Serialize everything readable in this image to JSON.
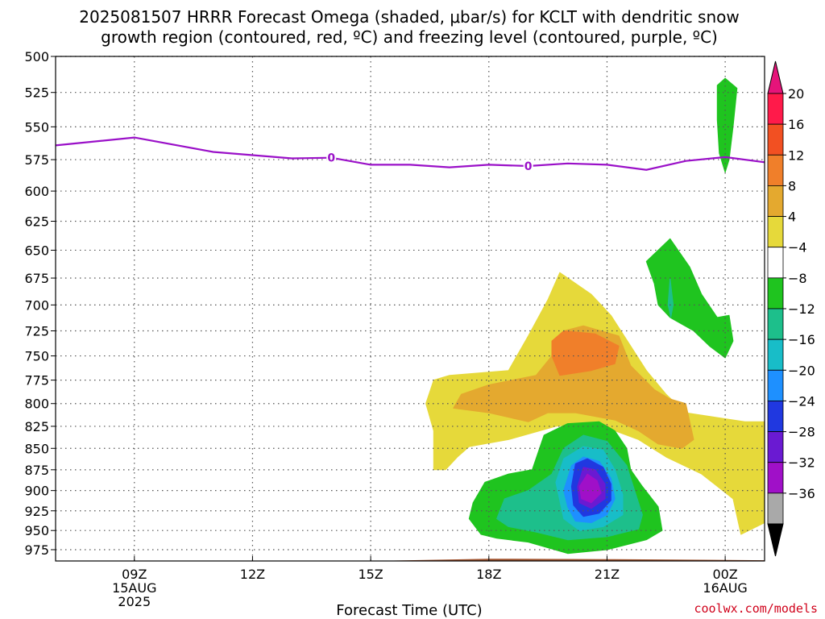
{
  "chart_data": {
    "type": "contour",
    "title_line1": "2025081507 HRRR Forecast Omega (shaded, μbar/s) for KCLT with dendritic snow",
    "title_line2": "growth region (contoured, red, ºC) and freezing level (contoured, purple, ºC)",
    "xlabel": "Forecast Time (UTC)",
    "credit": "coolwx.com/models",
    "y_axis": {
      "ticks": [
        500,
        525,
        550,
        575,
        600,
        625,
        650,
        675,
        700,
        725,
        750,
        775,
        800,
        825,
        850,
        875,
        900,
        925,
        950,
        975
      ],
      "range": [
        500,
        990
      ],
      "scale": "log-pressure"
    },
    "x_axis": {
      "range_hours": [
        0,
        18
      ],
      "ticks": [
        {
          "hour": 2,
          "line1": "09Z",
          "line2": "15AUG",
          "line3": "2025"
        },
        {
          "hour": 5,
          "line1": "12Z",
          "line2": "",
          "line3": ""
        },
        {
          "hour": 8,
          "line1": "15Z",
          "line2": "",
          "line3": ""
        },
        {
          "hour": 11,
          "line1": "18Z",
          "line2": "",
          "line3": ""
        },
        {
          "hour": 14,
          "line1": "21Z",
          "line2": "",
          "line3": ""
        },
        {
          "hour": 17,
          "line1": "00Z",
          "line2": "16AUG",
          "line3": ""
        }
      ]
    },
    "colorbar": {
      "labels": [
        "20",
        "16",
        "12",
        "8",
        "4",
        "−4",
        "−8",
        "−12",
        "−16",
        "−20",
        "−24",
        "−28",
        "−32",
        "−36"
      ],
      "colors": [
        "#ff1a4a",
        "#f25022",
        "#f07f2a",
        "#e4a92f",
        "#e6d93a",
        "#ffffff",
        "#1fc41f",
        "#1dbf8b",
        "#18bdc8",
        "#1e90ff",
        "#2038e0",
        "#6a1ad2",
        "#a010c8",
        "#a9a9a9"
      ],
      "top_arrow_color": "#e6147a",
      "bottom_arrow_color": "#000000"
    },
    "freezing_level": {
      "color": "#9a10c8",
      "label": "0",
      "label_hours": [
        7.0,
        12.0
      ],
      "points": [
        [
          0,
          564
        ],
        [
          2,
          558
        ],
        [
          4,
          569
        ],
        [
          6,
          574
        ],
        [
          7,
          573.5
        ],
        [
          8,
          579
        ],
        [
          9,
          579
        ],
        [
          10,
          581
        ],
        [
          11,
          579
        ],
        [
          12,
          580
        ],
        [
          13,
          578
        ],
        [
          14,
          579
        ],
        [
          15,
          583
        ],
        [
          16,
          576
        ],
        [
          17,
          573
        ],
        [
          18,
          577
        ]
      ]
    },
    "omega_regions": [
      {
        "value": 4,
        "color": "#e6d93a",
        "points": [
          [
            9.6,
            875
          ],
          [
            9.6,
            830
          ],
          [
            9.4,
            800
          ],
          [
            9.6,
            775
          ],
          [
            10,
            770
          ],
          [
            11.5,
            765
          ],
          [
            12,
            730
          ],
          [
            12.5,
            695
          ],
          [
            12.8,
            670
          ],
          [
            13.6,
            690
          ],
          [
            14.1,
            710
          ],
          [
            14.6,
            740
          ],
          [
            15,
            765
          ],
          [
            15.5,
            790
          ],
          [
            16,
            810
          ],
          [
            17.5,
            820
          ],
          [
            18,
            820
          ],
          [
            18,
            940
          ],
          [
            17.4,
            955
          ],
          [
            17.2,
            910
          ],
          [
            16.4,
            880
          ],
          [
            15.5,
            860
          ],
          [
            14.8,
            840
          ],
          [
            14.2,
            830
          ],
          [
            13.3,
            822
          ],
          [
            12.7,
            825
          ],
          [
            11.5,
            840
          ],
          [
            10.5,
            848
          ],
          [
            10.2,
            860
          ],
          [
            9.9,
            875
          ]
        ]
      },
      {
        "value": 8,
        "color": "#e4a92f",
        "points": [
          [
            10.1,
            805
          ],
          [
            10.3,
            790
          ],
          [
            11,
            780
          ],
          [
            12.2,
            770
          ],
          [
            12.6,
            750
          ],
          [
            12.9,
            725
          ],
          [
            13.4,
            720
          ],
          [
            14.3,
            730
          ],
          [
            14.6,
            760
          ],
          [
            15.2,
            785
          ],
          [
            15.6,
            795
          ],
          [
            16,
            800
          ],
          [
            16.2,
            840
          ],
          [
            15.9,
            850
          ],
          [
            15.3,
            845
          ],
          [
            14.8,
            830
          ],
          [
            14.2,
            818
          ],
          [
            13.2,
            810
          ],
          [
            12.5,
            810
          ],
          [
            12,
            820
          ],
          [
            11,
            810
          ]
        ]
      },
      {
        "value": 12,
        "color": "#f07f2a",
        "points": [
          [
            12.6,
            735
          ],
          [
            12.9,
            725
          ],
          [
            13.7,
            728
          ],
          [
            14.3,
            740
          ],
          [
            14.2,
            758
          ],
          [
            13.6,
            765
          ],
          [
            12.8,
            770
          ],
          [
            12.6,
            750
          ]
        ]
      },
      {
        "value": -4,
        "color": "#1fc41f",
        "points": [
          [
            10.6,
            915
          ],
          [
            10.9,
            890
          ],
          [
            11.5,
            880
          ],
          [
            12.1,
            875
          ],
          [
            12.4,
            835
          ],
          [
            13,
            822
          ],
          [
            13.8,
            820
          ],
          [
            14.2,
            830
          ],
          [
            14.5,
            850
          ],
          [
            14.6,
            875
          ],
          [
            14.9,
            895
          ],
          [
            15.3,
            920
          ],
          [
            15.4,
            950
          ],
          [
            15,
            962
          ],
          [
            14,
            975
          ],
          [
            13,
            980
          ],
          [
            12,
            965
          ],
          [
            11.2,
            960
          ],
          [
            10.8,
            955
          ],
          [
            10.5,
            935
          ]
        ]
      },
      {
        "value": -8,
        "color": "#1dbf8b",
        "points": [
          [
            11.2,
            935
          ],
          [
            11.4,
            910
          ],
          [
            12,
            900
          ],
          [
            12.6,
            880
          ],
          [
            12.9,
            850
          ],
          [
            13.4,
            835
          ],
          [
            14,
            842
          ],
          [
            14.5,
            870
          ],
          [
            14.7,
            900
          ],
          [
            14.9,
            930
          ],
          [
            14.8,
            948
          ],
          [
            14,
            958
          ],
          [
            13,
            962
          ],
          [
            12.2,
            952
          ],
          [
            11.5,
            945
          ]
        ]
      },
      {
        "value": -12,
        "color": "#18bdc8",
        "points": [
          [
            12.7,
            890
          ],
          [
            12.9,
            862
          ],
          [
            13.4,
            848
          ],
          [
            13.9,
            852
          ],
          [
            14.2,
            875
          ],
          [
            14.4,
            905
          ],
          [
            14.4,
            930
          ],
          [
            13.9,
            945
          ],
          [
            13.3,
            950
          ],
          [
            12.9,
            935
          ]
        ]
      },
      {
        "value": -16,
        "color": "#1e90ff",
        "points": [
          [
            12.9,
            900
          ],
          [
            13.1,
            870
          ],
          [
            13.4,
            860
          ],
          [
            13.8,
            865
          ],
          [
            14.1,
            885
          ],
          [
            14.2,
            910
          ],
          [
            14,
            930
          ],
          [
            13.6,
            940
          ],
          [
            13.2,
            938
          ],
          [
            13,
            920
          ]
        ]
      },
      {
        "value": -20,
        "color": "#2038e0",
        "points": [
          [
            13.1,
            895
          ],
          [
            13.2,
            868
          ],
          [
            13.5,
            862
          ],
          [
            13.9,
            872
          ],
          [
            14.1,
            892
          ],
          [
            14.1,
            912
          ],
          [
            13.8,
            928
          ],
          [
            13.4,
            932
          ],
          [
            13.15,
            918
          ]
        ]
      },
      {
        "value": -24,
        "color": "#6a1ad2",
        "points": [
          [
            13.25,
            895
          ],
          [
            13.4,
            872
          ],
          [
            13.7,
            875
          ],
          [
            13.95,
            892
          ],
          [
            13.95,
            910
          ],
          [
            13.6,
            922
          ],
          [
            13.3,
            915
          ]
        ]
      },
      {
        "value": -28,
        "color": "#a010c8",
        "points": [
          [
            13.3,
            895
          ],
          [
            13.5,
            880
          ],
          [
            13.75,
            888
          ],
          [
            13.85,
            903
          ],
          [
            13.6,
            915
          ],
          [
            13.35,
            910
          ]
        ]
      },
      {
        "value": -4,
        "color": "#1fc41f",
        "points": [
          [
            15,
            660
          ],
          [
            15.6,
            640
          ],
          [
            16.1,
            665
          ],
          [
            16.4,
            690
          ],
          [
            16.8,
            712
          ],
          [
            17.1,
            710
          ],
          [
            17.2,
            735
          ],
          [
            17,
            752
          ],
          [
            16.6,
            740
          ],
          [
            16.2,
            725
          ],
          [
            15.6,
            712
          ],
          [
            15.3,
            700
          ],
          [
            15.2,
            680
          ]
        ]
      },
      {
        "value": -8,
        "color": "#1dbf8b",
        "points": [
          [
            15.55,
            700
          ],
          [
            15.6,
            675
          ],
          [
            15.68,
            700
          ],
          [
            15.62,
            712
          ]
        ]
      },
      {
        "value": -4,
        "color": "#1fc41f",
        "points": [
          [
            16.8,
            520
          ],
          [
            17.0,
            515
          ],
          [
            17.3,
            522
          ],
          [
            17.2,
            550
          ],
          [
            17.1,
            575
          ],
          [
            17.0,
            585
          ],
          [
            16.85,
            570
          ],
          [
            16.8,
            545
          ]
        ]
      }
    ],
    "ground": {
      "color": "#a0522d",
      "label": ""
    }
  }
}
